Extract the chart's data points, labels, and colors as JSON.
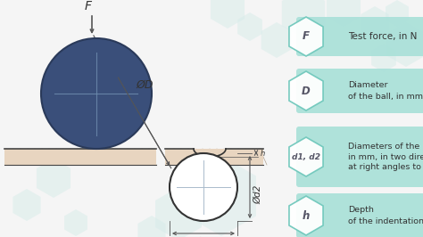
{
  "bg_color": "#f5f5f5",
  "ball_color": "#3a4f7a",
  "ball_edge_color": "#2a3a5a",
  "surface_fill": "#e8d5c0",
  "surface_line": "#444444",
  "dim_line_color": "#555555",
  "arrow_color": "#555555",
  "indent_color": "#333333",
  "hex_bg_color": "#a8e0d8",
  "hex_stroke_color": "#70c8bc",
  "hex_label_color": "#555566",
  "text_color": "#333333",
  "cross_color": "#7090b0",
  "decor_hex_color": "#d8ecea",
  "legend_items": [
    {
      "label": "F",
      "lines": [
        "Test force, in N"
      ]
    },
    {
      "label": "D",
      "lines": [
        "Diameter",
        "of the ball, in mm"
      ]
    },
    {
      "label": "d1, d2",
      "lines": [
        "Diameters of the indentation,",
        "in mm, in two directions",
        "at right angles to each other"
      ]
    },
    {
      "label": "h",
      "lines": [
        "Depth",
        "of the indentation, in mm"
      ]
    }
  ]
}
